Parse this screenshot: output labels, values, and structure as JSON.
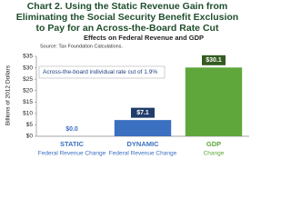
{
  "chart_data": {
    "type": "bar",
    "title": [
      "Chart 2. Using the Static Revenue Gain from",
      "Eliminating the Social Security Benefit Exclusion",
      "to Pay for an Across-the-Board Rate Cut"
    ],
    "subtitle": "Effects on Federal Revenue and GDP",
    "source": "Source: Tax Foundation Calculations.",
    "y_label": "Billions of 2012 Dollars",
    "annotation": "Across-the-board individual rate cut of 1.9%",
    "categories": [
      "STATIC",
      "DYNAMIC",
      "GDP"
    ],
    "category_sublabels": [
      "Federal Revenue Change",
      "Federal Revenue Change",
      "Change"
    ],
    "values": [
      0,
      7.1,
      30.1
    ],
    "value_labels": [
      "$0.0",
      "$7.1",
      "$30.1"
    ],
    "value_label_boxes": [
      false,
      true,
      true
    ],
    "colors": [
      "#3b6fc0",
      "#3b6fc0",
      "#5fa73b"
    ],
    "ylim": [
      0,
      35
    ],
    "yticks": [
      {
        "value": 0,
        "label": "$0"
      },
      {
        "value": 5,
        "label": "$5"
      },
      {
        "value": 10,
        "label": "$10"
      },
      {
        "value": 15,
        "label": "$15"
      },
      {
        "value": 20,
        "label": "$20"
      },
      {
        "value": 25,
        "label": "$25"
      },
      {
        "value": 30,
        "label": "$30"
      },
      {
        "value": 35,
        "label": "$35"
      }
    ],
    "grid": false
  }
}
